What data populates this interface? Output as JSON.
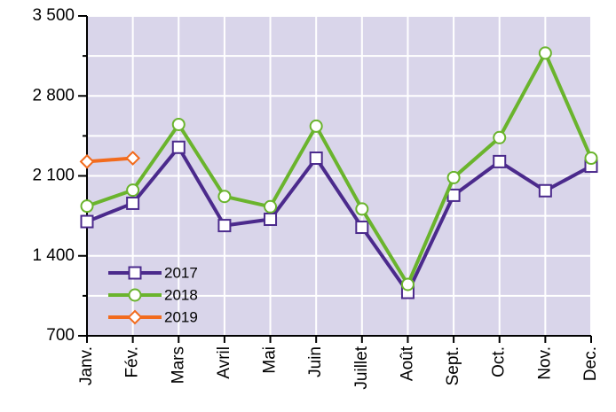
{
  "chart_data": {
    "type": "line",
    "categories": [
      "Janv.",
      "Fév.",
      "Mars",
      "Avril",
      "Mai",
      "Juin",
      "Juillet",
      "Août",
      "Sept.",
      "Oct.",
      "Nov.",
      "Dec."
    ],
    "series": [
      {
        "name": "2017",
        "color": "#4b2a8c",
        "marker": "square",
        "values": [
          1700,
          1860,
          2350,
          1665,
          1720,
          2255,
          1650,
          1080,
          1930,
          2225,
          1970,
          2185
        ]
      },
      {
        "name": "2018",
        "color": "#6ab42d",
        "marker": "circle",
        "values": [
          1835,
          1975,
          2550,
          1920,
          1830,
          2535,
          1810,
          1150,
          2085,
          2435,
          3175,
          2255
        ]
      },
      {
        "name": "2019",
        "color": "#f26b1d",
        "marker": "diamond",
        "values": [
          2225,
          2255,
          null,
          null,
          null,
          null,
          null,
          null,
          null,
          null,
          null,
          null
        ]
      }
    ],
    "ylim": [
      700,
      3500
    ],
    "yticks": [
      700,
      {
        "value": 1400,
        "label": "1 400"
      },
      {
        "value": 2100,
        "label": "2 100"
      },
      {
        "value": 2800,
        "label": "2 800"
      },
      {
        "value": 3500,
        "label": "3 500"
      }
    ],
    "minor_yticks": [
      1050,
      1750,
      2450,
      3150
    ],
    "grid": true,
    "background": "#d9d5ea",
    "legend": "lower left"
  }
}
